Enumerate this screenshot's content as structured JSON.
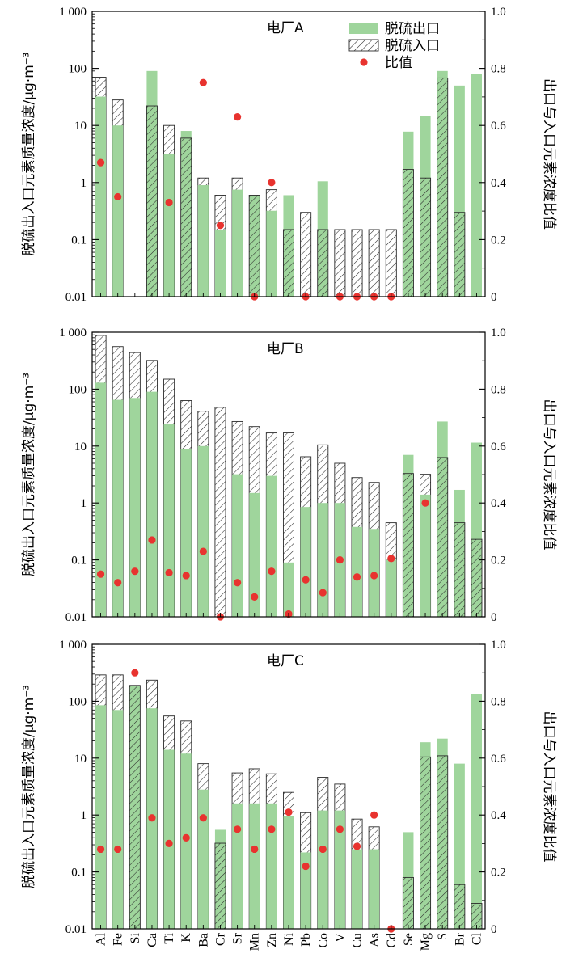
{
  "colors": {
    "outlet": "#9fd59c",
    "inlet_stroke": "#2b2b2b",
    "ratio": "#e8332f",
    "axis": "#000000"
  },
  "chart_data": [
    {
      "type": "bar",
      "title": "电厂A",
      "ylabel": "脱硫出入口元素质量浓度/μg·m⁻³",
      "y2label": "出口与入口元素浓度比值",
      "yscale": "log",
      "ylim": [
        0.01,
        1000
      ],
      "y2lim": [
        0,
        1.0
      ],
      "yticks": [
        "0.01",
        "0.1",
        "1",
        "10",
        "100",
        "1 000"
      ],
      "y2ticks": [
        "0",
        "0.2",
        "0.4",
        "0.6",
        "0.8",
        "1.0"
      ],
      "legend": {
        "position": "top-right",
        "entries": [
          "脱硫出口",
          "脱硫入口",
          "比值"
        ]
      },
      "categories": [
        "Al",
        "Fe",
        "Si",
        "Ca",
        "Ti",
        "K",
        "Ba",
        "Cr",
        "Sr",
        "Mn",
        "Zn",
        "Ni",
        "Pb",
        "Co",
        "V",
        "Cu",
        "As",
        "Cd",
        "Se",
        "Mg",
        "S",
        "Br",
        "Cl"
      ],
      "series": [
        {
          "name": "脱硫出口",
          "values": [
            32,
            10,
            null,
            90,
            3.2,
            8,
            0.9,
            0.15,
            0.75,
            0.6,
            0.32,
            0.6,
            0.01,
            1.05,
            0.01,
            0.01,
            0.01,
            0.01,
            7.8,
            14.5,
            90,
            50,
            80
          ]
        },
        {
          "name": "脱硫入口",
          "values": [
            70,
            28,
            null,
            22,
            10,
            6,
            1.2,
            0.6,
            1.2,
            0.6,
            0.75,
            0.15,
            0.3,
            0.15,
            0.15,
            0.15,
            0.15,
            0.15,
            1.7,
            1.2,
            68,
            0.3,
            null
          ]
        },
        {
          "name": "比值",
          "values": [
            0.47,
            0.35,
            null,
            null,
            0.33,
            null,
            null,
            0.25,
            null,
            0.0,
            null,
            null,
            0.0,
            null,
            0.0,
            0.0,
            0.0,
            0.0,
            null,
            null,
            null,
            null,
            null
          ]
        }
      ],
      "ratio_extra": [
        null,
        null,
        null,
        null,
        null,
        null,
        0.75,
        null,
        0.63,
        null,
        0.4,
        null,
        null,
        null,
        null,
        null,
        null,
        null,
        null,
        null,
        null,
        null,
        null
      ]
    },
    {
      "type": "bar",
      "title": "电厂B",
      "ylabel": "脱硫出入口元素质量浓度/μg·m⁻³",
      "y2label": "出口与入口元素浓度比值",
      "yscale": "log",
      "ylim": [
        0.01,
        1000
      ],
      "y2lim": [
        0,
        1.0
      ],
      "yticks": [
        "0.01",
        "0.1",
        "1",
        "10",
        "100",
        "1 000"
      ],
      "y2ticks": [
        "0",
        "0.2",
        "0.4",
        "0.6",
        "0.8",
        "1.0"
      ],
      "categories": [
        "Al",
        "Fe",
        "Si",
        "Ca",
        "Ti",
        "K",
        "Ba",
        "Cr",
        "Sr",
        "Mn",
        "Zn",
        "Ni",
        "Pb",
        "Co",
        "V",
        "Cu",
        "As",
        "Cd",
        "Se",
        "Mg",
        "S",
        "Br",
        "Cl"
      ],
      "series": [
        {
          "name": "脱硫出口",
          "values": [
            130,
            65,
            70,
            90,
            24,
            9,
            10,
            0.01,
            3.2,
            1.5,
            3.0,
            0.09,
            0.85,
            1.0,
            1.0,
            0.38,
            0.35,
            0.1,
            7.0,
            1.4,
            27,
            1.7,
            11.5
          ]
        },
        {
          "name": "脱硫入口",
          "values": [
            880,
            560,
            440,
            320,
            150,
            63,
            41,
            48,
            27,
            22,
            17,
            17,
            6.5,
            10.5,
            5.0,
            2.8,
            2.3,
            0.45,
            3.3,
            3.2,
            6.3,
            0.45,
            0.23
          ]
        },
        {
          "name": "比值",
          "values": [
            0.15,
            0.12,
            0.16,
            0.27,
            0.155,
            0.145,
            0.23,
            0.0,
            0.12,
            0.07,
            0.16,
            0.01,
            0.13,
            0.085,
            0.2,
            0.14,
            0.145,
            0.205,
            null,
            0.4,
            null,
            null,
            null
          ]
        }
      ]
    },
    {
      "type": "bar",
      "title": "电厂C",
      "ylabel": "脱硫出入口元素质量浓度/μg·m⁻³",
      "y2label": "出口与入口元素浓度比值",
      "yscale": "log",
      "ylim": [
        0.01,
        1000
      ],
      "y2lim": [
        0,
        1.0
      ],
      "yticks": [
        "0.01",
        "0.1",
        "1",
        "10",
        "100",
        "1 000"
      ],
      "y2ticks": [
        "0",
        "0.2",
        "0.4",
        "0.6",
        "0.8",
        "1.0"
      ],
      "categories": [
        "Al",
        "Fe",
        "Si",
        "Ca",
        "Ti",
        "K",
        "Ba",
        "Cr",
        "Sr",
        "Mn",
        "Zn",
        "Ni",
        "Pb",
        "Co",
        "V",
        "Cu",
        "As",
        "Cd",
        "Se",
        "Mg",
        "S",
        "Br",
        "Cl"
      ],
      "series": [
        {
          "name": "脱硫出口",
          "values": [
            85,
            70,
            190,
            75,
            14,
            12,
            2.8,
            0.55,
            1.6,
            1.6,
            1.6,
            0.95,
            0.22,
            1.2,
            1.2,
            0.25,
            0.25,
            0.01,
            0.5,
            19,
            22,
            8.0,
            135
          ]
        },
        {
          "name": "脱硫入口",
          "values": [
            290,
            290,
            190,
            235,
            55,
            45,
            8.0,
            0.32,
            5.5,
            6.5,
            5.3,
            2.5,
            1.1,
            4.6,
            3.5,
            0.85,
            0.62,
            0.01,
            0.08,
            10.5,
            11,
            0.06,
            0.028
          ]
        },
        {
          "name": "比值",
          "values": [
            0.28,
            0.28,
            0.9,
            0.39,
            0.3,
            0.32,
            0.39,
            null,
            0.35,
            0.28,
            0.35,
            0.41,
            0.22,
            0.28,
            0.35,
            0.29,
            0.4,
            0.0,
            null,
            null,
            null,
            null,
            null
          ]
        }
      ]
    }
  ]
}
